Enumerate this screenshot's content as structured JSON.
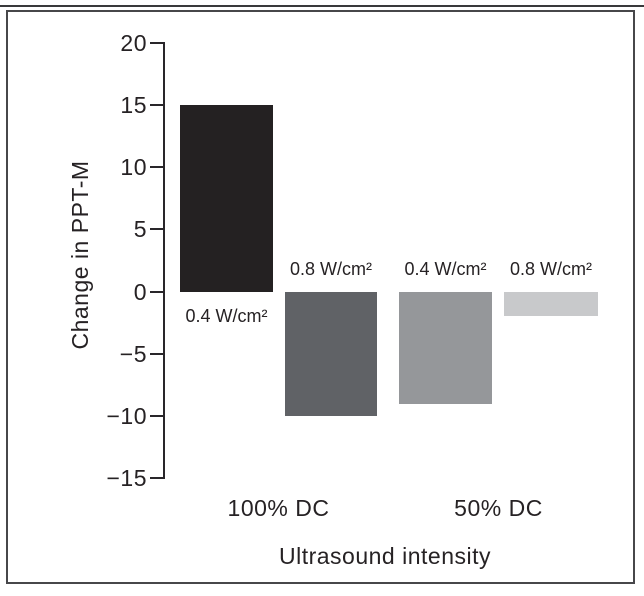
{
  "figure": {
    "type": "scanned-journal-figure",
    "background": "#ffffff",
    "frame_color": "#47474a",
    "text_color": "#262224"
  },
  "chart_data": {
    "type": "bar",
    "title": "",
    "xlabel": "Ultrasound intensity",
    "ylabel": "Change in PPT-M",
    "ylim": [
      -15,
      20
    ],
    "grid": false,
    "legend": "none (bars labeled directly)",
    "yticks": [
      {
        "value": 20,
        "label": "20"
      },
      {
        "value": 15,
        "label": "15"
      },
      {
        "value": 10,
        "label": "10"
      },
      {
        "value": 5,
        "label": "5"
      },
      {
        "value": 0,
        "label": "0"
      },
      {
        "value": -5,
        "label": "−5"
      },
      {
        "value": -10,
        "label": "−10"
      },
      {
        "value": -15,
        "label": "−15"
      }
    ],
    "groups": [
      {
        "label": "100% DC",
        "bars": [
          {
            "label": "0.4 W/cm²",
            "value": 15,
            "color": "#242122"
          },
          {
            "label": "0.8 W/cm²",
            "value": -10,
            "color": "#606266"
          }
        ]
      },
      {
        "label": "50% DC",
        "bars": [
          {
            "label": "0.4 W/cm²",
            "value": -9,
            "color": "#95979a"
          },
          {
            "label": "0.8 W/cm²",
            "value": -2,
            "color": "#c8c9cb"
          }
        ]
      }
    ]
  }
}
